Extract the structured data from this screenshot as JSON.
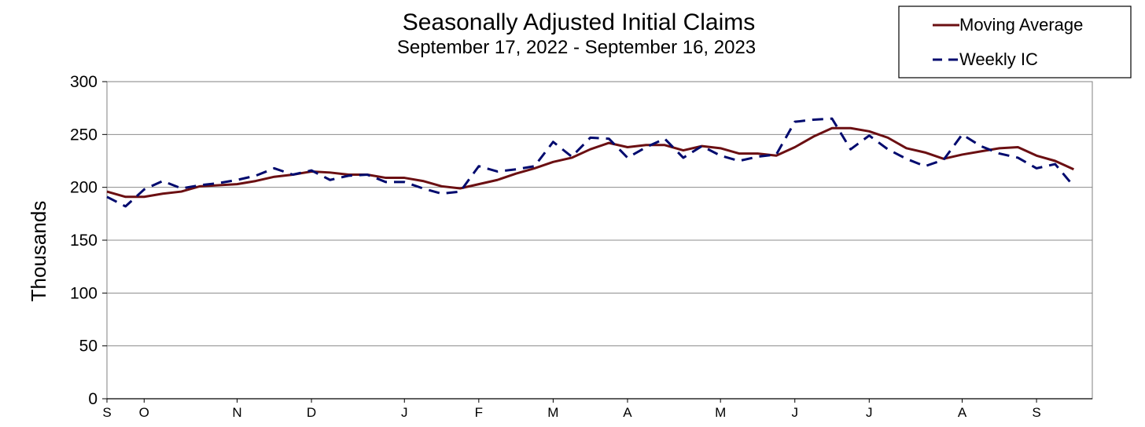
{
  "chart_data": {
    "type": "line",
    "title": "Seasonally Adjusted Initial Claims",
    "subtitle": "September 17, 2022 - September 16, 2023",
    "ylabel": "Thousands",
    "xlabel": "",
    "ylim": [
      0,
      300
    ],
    "yticks": [
      0,
      50,
      100,
      150,
      200,
      250,
      300
    ],
    "grid": "horizontal",
    "legend_position": "top-right",
    "x_tick_labels": [
      {
        "label": "S",
        "week": 0
      },
      {
        "label": "O",
        "week": 2
      },
      {
        "label": "N",
        "week": 7
      },
      {
        "label": "D",
        "week": 11
      },
      {
        "label": "J",
        "week": 16
      },
      {
        "label": "F",
        "week": 20
      },
      {
        "label": "M",
        "week": 24
      },
      {
        "label": "A",
        "week": 28
      },
      {
        "label": "M",
        "week": 33
      },
      {
        "label": "J",
        "week": 37
      },
      {
        "label": "J",
        "week": 41
      },
      {
        "label": "A",
        "week": 46
      },
      {
        "label": "S",
        "week": 50
      }
    ],
    "x_range": [
      0,
      53
    ],
    "series": [
      {
        "name": "Moving Average",
        "color": "#6b0f12",
        "style": "solid",
        "values": [
          196,
          191,
          191,
          194,
          196,
          201,
          202,
          203,
          206,
          210,
          212,
          215,
          214,
          212,
          212,
          209,
          209,
          206,
          201,
          199,
          203,
          207,
          213,
          218,
          224,
          228,
          236,
          242,
          238,
          240,
          240,
          235,
          239,
          237,
          232,
          232,
          230,
          238,
          248,
          256,
          256,
          253,
          247,
          237,
          233,
          227,
          231,
          234,
          237,
          238,
          230,
          225,
          217
        ]
      },
      {
        "name": "Weekly IC",
        "color": "#000a6e",
        "style": "dashed",
        "values": [
          191,
          182,
          198,
          206,
          199,
          202,
          204,
          207,
          211,
          218,
          212,
          216,
          207,
          211,
          212,
          205,
          205,
          199,
          194,
          196,
          220,
          215,
          217,
          220,
          243,
          229,
          247,
          246,
          228,
          238,
          246,
          228,
          239,
          230,
          225,
          229,
          231,
          262,
          264,
          265,
          236,
          249,
          236,
          227,
          220,
          226,
          250,
          239,
          232,
          228,
          218,
          222,
          201
        ]
      }
    ]
  }
}
